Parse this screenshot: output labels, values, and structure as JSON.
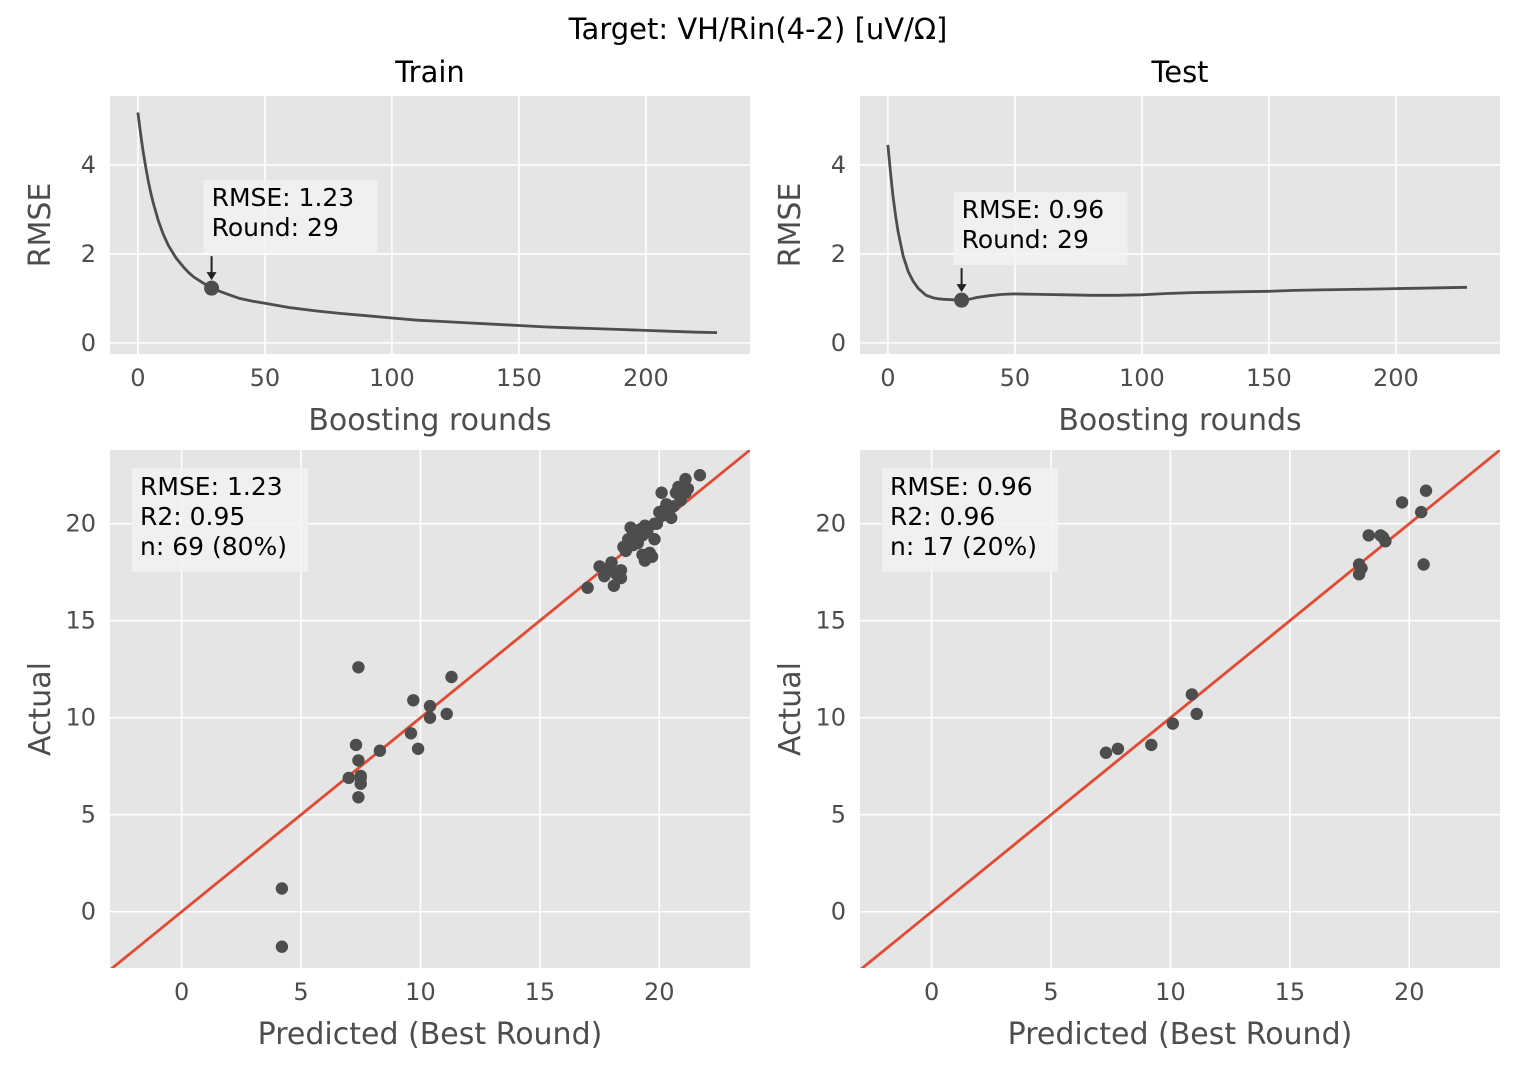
{
  "suptitle": "Target: VH/Rin(4-2) [uV/Ω]",
  "colors": {
    "panel_bg": "#e5e5e5",
    "grid": "#ffffff",
    "line": "#4d4d4d",
    "point": "#4d4d4d",
    "identity": "#e24a33",
    "annot_box": "#f2f2f2"
  },
  "chart_data": [
    {
      "id": "train-curve",
      "type": "line",
      "title": "Train",
      "xlabel": "Boosting rounds",
      "ylabel": "RMSE",
      "xlim": [
        -11,
        241
      ],
      "ylim": [
        -0.25,
        5.55
      ],
      "xticks": [
        "0",
        "50",
        "100",
        "150",
        "200"
      ],
      "yticks": [
        "0",
        "2",
        "4"
      ],
      "xtick_values": [
        0,
        50,
        100,
        150,
        200
      ],
      "ytick_values": [
        0,
        2,
        4
      ],
      "grid": true,
      "x": [
        0,
        1,
        2,
        3,
        4,
        5,
        6,
        8,
        10,
        12,
        15,
        18,
        20,
        22,
        25,
        29,
        35,
        40,
        45,
        50,
        60,
        70,
        80,
        90,
        100,
        110,
        120,
        130,
        140,
        150,
        160,
        170,
        180,
        190,
        200,
        210,
        220,
        228
      ],
      "y": [
        5.18,
        4.72,
        4.32,
        3.97,
        3.66,
        3.39,
        3.15,
        2.75,
        2.44,
        2.19,
        1.91,
        1.7,
        1.58,
        1.48,
        1.37,
        1.23,
        1.1,
        1.0,
        0.94,
        0.89,
        0.79,
        0.72,
        0.66,
        0.61,
        0.56,
        0.51,
        0.48,
        0.45,
        0.42,
        0.39,
        0.36,
        0.34,
        0.32,
        0.3,
        0.28,
        0.26,
        0.24,
        0.23
      ],
      "best": {
        "x": 29,
        "y": 1.23
      },
      "annotation": [
        "RMSE: 1.23",
        "Round: 29"
      ],
      "annotation_pos": "upper-left"
    },
    {
      "id": "test-curve",
      "type": "line",
      "title": "Test",
      "xlabel": "Boosting rounds",
      "ylabel": "RMSE",
      "xlim": [
        -11,
        241
      ],
      "ylim": [
        -0.25,
        5.55
      ],
      "xticks": [
        "0",
        "50",
        "100",
        "150",
        "200"
      ],
      "yticks": [
        "0",
        "2",
        "4"
      ],
      "xtick_values": [
        0,
        50,
        100,
        150,
        200
      ],
      "ytick_values": [
        0,
        2,
        4
      ],
      "grid": true,
      "x": [
        0,
        1,
        2,
        3,
        4,
        6,
        8,
        10,
        12,
        15,
        18,
        20,
        22,
        25,
        29,
        32,
        35,
        40,
        45,
        50,
        60,
        70,
        80,
        90,
        100,
        110,
        120,
        130,
        140,
        150,
        160,
        170,
        180,
        190,
        200,
        210,
        220,
        228
      ],
      "y": [
        4.45,
        3.83,
        3.3,
        2.86,
        2.5,
        1.95,
        1.6,
        1.38,
        1.22,
        1.07,
        1.01,
        0.99,
        0.98,
        0.97,
        0.96,
        0.98,
        1.02,
        1.06,
        1.09,
        1.1,
        1.09,
        1.08,
        1.07,
        1.07,
        1.08,
        1.11,
        1.13,
        1.14,
        1.15,
        1.16,
        1.18,
        1.19,
        1.2,
        1.21,
        1.22,
        1.23,
        1.24,
        1.25
      ],
      "best": {
        "x": 29,
        "y": 0.96
      },
      "annotation": [
        "RMSE: 0.96",
        "Round: 29"
      ],
      "annotation_pos": "upper-left"
    },
    {
      "id": "train-scatter",
      "type": "scatter",
      "xlabel": "Predicted (Best Round)",
      "ylabel": "Actual",
      "xlim": [
        -3.0,
        23.8
      ],
      "ylim": [
        -2.9,
        23.8
      ],
      "xticks": [
        "0",
        "5",
        "10",
        "15",
        "20"
      ],
      "yticks": [
        "0",
        "5",
        "10",
        "15",
        "20"
      ],
      "xtick_values": [
        0,
        5,
        10,
        15,
        20
      ],
      "ytick_values": [
        0,
        5,
        10,
        15,
        20
      ],
      "grid": true,
      "identity_line": true,
      "points": [
        [
          4.2,
          1.2
        ],
        [
          4.2,
          -1.8
        ],
        [
          7.0,
          6.9
        ],
        [
          7.3,
          8.6
        ],
        [
          7.4,
          12.6
        ],
        [
          7.4,
          7.8
        ],
        [
          7.5,
          7.0
        ],
        [
          7.5,
          6.6
        ],
        [
          7.4,
          5.9
        ],
        [
          7.5,
          6.9
        ],
        [
          8.3,
          8.3
        ],
        [
          9.6,
          9.2
        ],
        [
          9.7,
          10.9
        ],
        [
          9.9,
          8.4
        ],
        [
          10.4,
          10.6
        ],
        [
          10.4,
          10.0
        ],
        [
          11.1,
          10.2
        ],
        [
          11.3,
          12.1
        ],
        [
          17.0,
          16.7
        ],
        [
          17.5,
          17.8
        ],
        [
          17.7,
          17.3
        ],
        [
          17.9,
          17.7
        ],
        [
          18.0,
          18.0
        ],
        [
          18.1,
          16.8
        ],
        [
          18.2,
          17.4
        ],
        [
          18.4,
          17.6
        ],
        [
          18.4,
          17.2
        ],
        [
          18.5,
          18.8
        ],
        [
          18.6,
          18.6
        ],
        [
          18.7,
          19.2
        ],
        [
          18.8,
          19.8
        ],
        [
          18.9,
          18.9
        ],
        [
          19.0,
          19.5
        ],
        [
          19.1,
          19.3
        ],
        [
          19.1,
          19.0
        ],
        [
          19.2,
          19.7
        ],
        [
          19.3,
          18.4
        ],
        [
          19.4,
          19.9
        ],
        [
          19.4,
          18.1
        ],
        [
          19.5,
          19.6
        ],
        [
          19.6,
          18.5
        ],
        [
          19.7,
          18.3
        ],
        [
          19.8,
          19.2
        ],
        [
          19.9,
          20.0
        ],
        [
          20.0,
          20.6
        ],
        [
          20.1,
          21.6
        ],
        [
          20.2,
          20.7
        ],
        [
          20.3,
          21.0
        ],
        [
          20.4,
          20.7
        ],
        [
          20.5,
          20.3
        ],
        [
          20.7,
          21.6
        ],
        [
          20.8,
          21.9
        ],
        [
          20.9,
          21.3
        ],
        [
          21.0,
          21.7
        ],
        [
          21.1,
          22.3
        ],
        [
          21.1,
          21.6
        ],
        [
          21.2,
          21.8
        ],
        [
          21.7,
          22.5
        ],
        [
          20.6,
          20.9
        ],
        [
          19.0,
          19.2
        ],
        [
          18.9,
          19.6
        ],
        [
          20.1,
          20.4
        ],
        [
          20.9,
          21.2
        ],
        [
          18.8,
          18.9
        ],
        [
          19.3,
          19.4
        ],
        [
          20.8,
          21.5
        ],
        [
          19.8,
          20.0
        ],
        [
          18.6,
          18.7
        ],
        [
          20.3,
          20.9
        ]
      ],
      "annotation": [
        "RMSE: 1.23",
        "R2: 0.95",
        "n: 69 (80%)"
      ],
      "annotation_pos": "upper-left"
    },
    {
      "id": "test-scatter",
      "type": "scatter",
      "xlabel": "Predicted (Best Round)",
      "ylabel": "Actual",
      "xlim": [
        -3.0,
        23.8
      ],
      "ylim": [
        -2.9,
        23.8
      ],
      "xticks": [
        "0",
        "5",
        "10",
        "15",
        "20"
      ],
      "yticks": [
        "0",
        "5",
        "10",
        "15",
        "20"
      ],
      "xtick_values": [
        0,
        5,
        10,
        15,
        20
      ],
      "ytick_values": [
        0,
        5,
        10,
        15,
        20
      ],
      "grid": true,
      "identity_line": true,
      "points": [
        [
          7.3,
          8.2
        ],
        [
          7.8,
          8.4
        ],
        [
          9.2,
          8.6
        ],
        [
          10.1,
          9.7
        ],
        [
          10.9,
          11.2
        ],
        [
          11.1,
          10.2
        ],
        [
          17.9,
          17.4
        ],
        [
          17.9,
          17.9
        ],
        [
          18.0,
          17.7
        ],
        [
          18.3,
          19.4
        ],
        [
          18.8,
          19.4
        ],
        [
          18.9,
          19.3
        ],
        [
          19.0,
          19.1
        ],
        [
          19.7,
          21.1
        ],
        [
          20.5,
          20.6
        ],
        [
          20.6,
          17.9
        ],
        [
          20.7,
          21.7
        ]
      ],
      "annotation": [
        "RMSE: 0.96",
        "R2: 0.96",
        "n: 17 (20%)"
      ],
      "annotation_pos": "upper-left"
    }
  ]
}
